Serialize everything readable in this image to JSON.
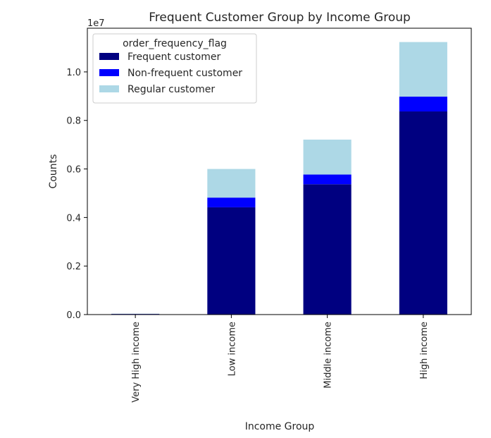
{
  "chart_data": {
    "type": "bar",
    "stacked": true,
    "title": "Frequent Customer Group by Income Group",
    "xlabel": "Income Group",
    "ylabel": "Counts",
    "y_scale_label": "1e7",
    "categories": [
      "Very High income",
      "Low income",
      "Middle income",
      "High income"
    ],
    "ylim": [
      0,
      11800000
    ],
    "yticks": [
      0,
      2000000,
      4000000,
      6000000,
      8000000,
      10000000
    ],
    "ytick_labels": [
      "0.0",
      "0.2",
      "0.4",
      "0.6",
      "0.8",
      "1.0"
    ],
    "legend": {
      "title": "order_frequency_flag",
      "placement": "top-left"
    },
    "grid": false,
    "series": [
      {
        "name": "Frequent customer",
        "color": "#000080",
        "values": [
          25000,
          4420000,
          5370000,
          8370000
        ]
      },
      {
        "name": "Non-frequent customer",
        "color": "#0000ff",
        "values": [
          3000,
          400000,
          400000,
          610000
        ]
      },
      {
        "name": "Regular customer",
        "color": "#add8e6",
        "values": [
          8000,
          1180000,
          1440000,
          2250000
        ]
      }
    ]
  }
}
